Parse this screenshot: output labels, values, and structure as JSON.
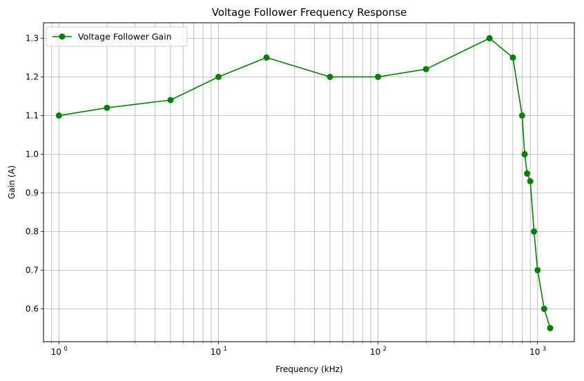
{
  "chart_data": {
    "type": "line",
    "title": "Voltage Follower Frequency Response",
    "xlabel": "Frequency (kHz)",
    "ylabel": "Gain (A)",
    "xscale": "log",
    "xlim": [
      0.8,
      1700
    ],
    "ylim": [
      0.515,
      1.34
    ],
    "grid": "both (major and minor)",
    "legend": "upper-left",
    "x_ticks": [
      {
        "base": "10",
        "exp": "0",
        "value": 1
      },
      {
        "base": "10",
        "exp": "1",
        "value": 10
      },
      {
        "base": "10",
        "exp": "2",
        "value": 100
      },
      {
        "base": "10",
        "exp": "3",
        "value": 1000
      }
    ],
    "y_ticks": [
      "0.6",
      "0.7",
      "0.8",
      "0.9",
      "1.0",
      "1.1",
      "1.2",
      "1.3"
    ],
    "series": [
      {
        "name": "Voltage Follower Gain",
        "color": "#008000",
        "marker": "circle",
        "x": [
          1,
          2,
          5,
          10,
          20,
          50,
          100,
          200,
          500,
          700,
          800,
          830,
          860,
          900,
          950,
          1000,
          1100,
          1200
        ],
        "y": [
          1.1,
          1.12,
          1.14,
          1.2,
          1.25,
          1.2,
          1.2,
          1.22,
          1.3,
          1.25,
          1.1,
          1.0,
          0.95,
          0.93,
          0.8,
          0.7,
          0.6,
          0.55
        ]
      }
    ]
  }
}
